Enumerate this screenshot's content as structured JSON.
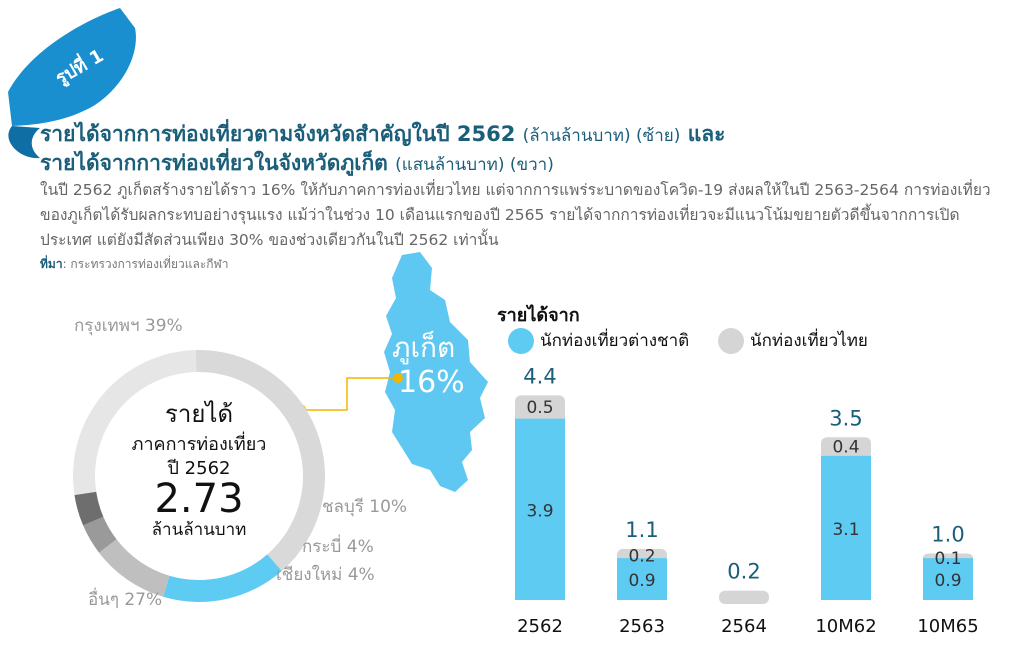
{
  "badge": {
    "text": "รูปที่ 1"
  },
  "title": {
    "line1_main": "รายได้จากการท่องเที่ยวตามจังหวัดสำคัญในปี 2562",
    "line1_sub": "(ล้านล้านบาท) (ซ้าย)",
    "line1_end": "และ",
    "line2_main": "รายได้จากการท่องเที่ยวในจังหวัดภูเก็ต",
    "line2_sub": "(แสนล้านบาท) (ขวา)"
  },
  "description": "ในปี 2562 ภูเก็ตสร้างรายได้ราว 16% ให้กับภาคการท่องเที่ยวไทย แต่จากการแพร่ระบาดของโควิด-19 ส่งผลให้ในปี 2563-2564 การท่องเที่ยวของภูเก็ตได้รับผลกระทบอย่างรุนแรง แม้ว่าในช่วง 10 เดือนแรกของปี 2565 รายได้จากการท่องเที่ยวจะมีแนวโน้มขยายตัวดีขึ้นจากการเปิดประเทศ แต่ยังมีสัดส่วนเพียง 30% ของช่วงเดียวกันในปี 2562 เท่านั้น",
  "source": {
    "label": "ที่มา",
    "text": ": กระทรวงการท่องเที่ยวและกีฬา"
  },
  "colors": {
    "title": "#1b5e7a",
    "badge": "#1a8fd0",
    "map": "#5ec8f2",
    "foreign": "#5ecbf3",
    "thai": "#d5d5d5",
    "callout": "#f2b600",
    "donut_bangkok": "#d9d9d9",
    "donut_phuket": "#5ecbf3",
    "donut_chonburi": "#bfbfbf",
    "donut_krabi": "#9a9a9a",
    "donut_chiangmai": "#6e6e6e",
    "donut_others": "#e6e6e6"
  },
  "map": {
    "name": "ภูเก็ต",
    "percent": "16%"
  },
  "donut_center": {
    "line1": "รายได้",
    "line2": "ภาคการท่องเที่ยว",
    "line3": "ปี 2562",
    "value": "2.73",
    "unit": "ล้านล้านบาท"
  },
  "chart_data": [
    {
      "type": "pie",
      "title": "",
      "unit": "ล้านล้านบาท",
      "total": 2.73,
      "categories": [
        "กรุงเทพฯ",
        "ภูเก็ต",
        "ชลบุรี",
        "กระบี่",
        "เชียงใหม่",
        "อื่นๆ"
      ],
      "values": [
        39,
        16,
        10,
        4,
        4,
        27
      ],
      "labels": [
        "กรุงเทพฯ 39%",
        "ภูเก็ต 16%",
        "ชลบุรี 10%",
        "กระบี่ 4%",
        "เชียงใหม่ 4%",
        "อื่นๆ 27%"
      ]
    },
    {
      "type": "bar",
      "stacked": true,
      "title": "รายได้จาก",
      "categories": [
        "2562",
        "2563",
        "2564",
        "10M62",
        "10M65"
      ],
      "series": [
        {
          "name": "นักท่องเที่ยวต่างชาติ",
          "values": [
            3.9,
            0.9,
            0.0,
            3.1,
            0.9
          ]
        },
        {
          "name": "นักท่องเที่ยวไทย",
          "values": [
            0.5,
            0.2,
            0.2,
            0.4,
            0.1
          ]
        }
      ],
      "totals": [
        "4.4",
        "1.1",
        "0.2",
        "3.5",
        "1.0"
      ],
      "foreign_labels": [
        "3.9",
        "0.9",
        "",
        "3.1",
        "0.9"
      ],
      "thai_labels": [
        "0.5",
        "0.2",
        "",
        "0.4",
        "0.1"
      ],
      "legend": "top",
      "grid": false
    }
  ]
}
